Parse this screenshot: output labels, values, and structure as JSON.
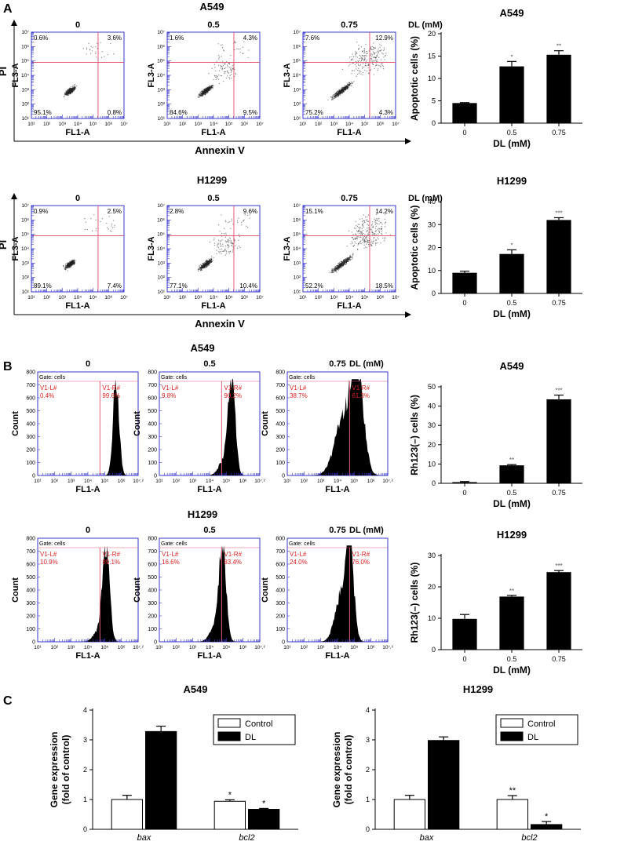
{
  "panels": {
    "A": {
      "letter": "A",
      "flow_common": {
        "x_axis_label": "FL1-A",
        "y_axis_label": "FL3-A",
        "ticks": [
          "10¹",
          "10²",
          "10³",
          "10⁴",
          "10⁵",
          "10⁶",
          "10⁷"
        ],
        "outer_x_label": "Annexin V",
        "outer_y_label": "PI",
        "unit_label": "DL (mM)"
      },
      "rows": [
        {
          "cell_line": "A549",
          "plots": [
            {
              "dose": "0",
              "q": [
                "0.6%",
                "3.6%",
                "95.1%",
                "0.8%"
              ]
            },
            {
              "dose": "0.5",
              "q": [
                "1.6%",
                "4.3%",
                "84.6%",
                "9.5%"
              ]
            },
            {
              "dose": "0.75",
              "q": [
                "7.6%",
                "12.9%",
                "75.2%",
                "4.3%"
              ]
            }
          ]
        },
        {
          "cell_line": "H1299",
          "plots": [
            {
              "dose": "0",
              "q": [
                "0.9%",
                "2.5%",
                "89.1%",
                "7.4%"
              ]
            },
            {
              "dose": "0.5",
              "q": [
                "2.8%",
                "9.6%",
                "77.1%",
                "10.4%"
              ]
            },
            {
              "dose": "0.75",
              "q": [
                "15.1%",
                "14.2%",
                "52.2%",
                "18.5%"
              ]
            }
          ]
        }
      ]
    },
    "B": {
      "letter": "B",
      "hist_common": {
        "x_axis_label": "FL1-A",
        "y_axis_label": "Count",
        "gate": "Gate: cells",
        "left_gate": "V1-L#",
        "right_gate": "V1-R#",
        "x_ticks": [
          "10¹",
          "10²",
          "10³",
          "10⁴",
          "10⁵",
          "10⁶",
          "10⁷.²"
        ],
        "y_ticks": [
          "0",
          "100",
          "200",
          "300",
          "400",
          "500",
          "600",
          "700",
          "800"
        ],
        "unit_label": "DL (mM)"
      },
      "rows": [
        {
          "cell_line": "A549",
          "plots": [
            {
              "dose": "0",
              "left": "0.4%",
              "right": "99.6%"
            },
            {
              "dose": "0.5",
              "left": "9.8%",
              "right": "90.2%"
            },
            {
              "dose": "0.75",
              "left": "38.7%",
              "right": "61.3%"
            }
          ]
        },
        {
          "cell_line": "H1299",
          "plots": [
            {
              "dose": "0",
              "left": "10.9%",
              "right": "89.1%"
            },
            {
              "dose": "0.5",
              "left": "16.6%",
              "right": "83.4%"
            },
            {
              "dose": "0.75",
              "left": "24.0%",
              "right": "76.0%"
            }
          ]
        }
      ]
    },
    "C": {
      "letter": "C"
    }
  },
  "chart_data": [
    {
      "type": "bar",
      "panel": "A",
      "title": "A549",
      "categories": [
        "0",
        "0.5",
        "0.75"
      ],
      "values": [
        4.5,
        12.7,
        15.3
      ],
      "errors": [
        0.1,
        1.1,
        0.9
      ],
      "annotations": [
        "",
        "*",
        "**"
      ],
      "xlabel": "DL (mM)",
      "ylabel": "Apoptotic cells (%)",
      "ylim": [
        0,
        20
      ],
      "yticks": [
        0,
        5,
        10,
        15,
        20
      ]
    },
    {
      "type": "bar",
      "panel": "A",
      "title": "H1299",
      "categories": [
        "0",
        "0.5",
        "0.75"
      ],
      "values": [
        9.0,
        17.2,
        32.0
      ],
      "errors": [
        0.7,
        1.8,
        1.0
      ],
      "annotations": [
        "",
        "*",
        "***"
      ],
      "xlabel": "DL (mM)",
      "ylabel": "Apoptotic cells (%)",
      "ylim": [
        0,
        40
      ],
      "yticks": [
        0,
        10,
        20,
        30,
        40
      ]
    },
    {
      "type": "bar",
      "panel": "B",
      "title": "A549",
      "categories": [
        "0",
        "0.5",
        "0.75"
      ],
      "values": [
        0.6,
        9.3,
        43.5
      ],
      "errors": [
        0.3,
        0.4,
        2.2
      ],
      "annotations": [
        "",
        "**",
        "***"
      ],
      "xlabel": "DL (mM)",
      "ylabel": "Rh123(–) cells (%)",
      "ylim": [
        0,
        50
      ],
      "yticks": [
        0,
        10,
        20,
        30,
        40,
        50
      ]
    },
    {
      "type": "bar",
      "panel": "B",
      "title": "H1299",
      "categories": [
        "0",
        "0.5",
        "0.75"
      ],
      "values": [
        9.8,
        16.9,
        24.7
      ],
      "errors": [
        1.4,
        0.4,
        0.5
      ],
      "annotations": [
        "",
        "**",
        "***"
      ],
      "xlabel": "DL (mM)",
      "ylabel": "Rh123(–) cells (%)",
      "ylim": [
        0,
        30
      ],
      "yticks": [
        0,
        10,
        20,
        30
      ]
    },
    {
      "type": "bar",
      "panel": "C",
      "title": "A549",
      "categories": [
        "bax",
        "bcl2"
      ],
      "series": [
        {
          "name": "Control",
          "values": [
            1.0,
            0.94
          ],
          "errors": [
            0.14,
            0.05
          ]
        },
        {
          "name": "DL",
          "values": [
            3.28,
            0.67
          ],
          "errors": [
            0.18,
            0.03
          ]
        }
      ],
      "annotations": [
        [
          "",
          "*"
        ],
        [
          "",
          "*"
        ]
      ],
      "ylabel": "Gene expression\n(fold of control)",
      "ylim": [
        0,
        4
      ],
      "yticks": [
        0,
        1,
        2,
        3,
        4
      ],
      "legend": "top-right"
    },
    {
      "type": "bar",
      "panel": "C",
      "title": "H1299",
      "categories": [
        "bax",
        "bcl2"
      ],
      "series": [
        {
          "name": "Control",
          "values": [
            1.0,
            1.0
          ],
          "errors": [
            0.14,
            0.13
          ]
        },
        {
          "name": "DL",
          "values": [
            2.98,
            0.16
          ],
          "errors": [
            0.12,
            0.1
          ]
        }
      ],
      "annotations": [
        [
          "",
          "**"
        ],
        [
          "",
          "*"
        ]
      ],
      "ylabel": "Gene expression\n(fold of control)",
      "ylim": [
        0,
        4
      ],
      "yticks": [
        0,
        1,
        2,
        3,
        4
      ],
      "legend": "top-right"
    }
  ]
}
